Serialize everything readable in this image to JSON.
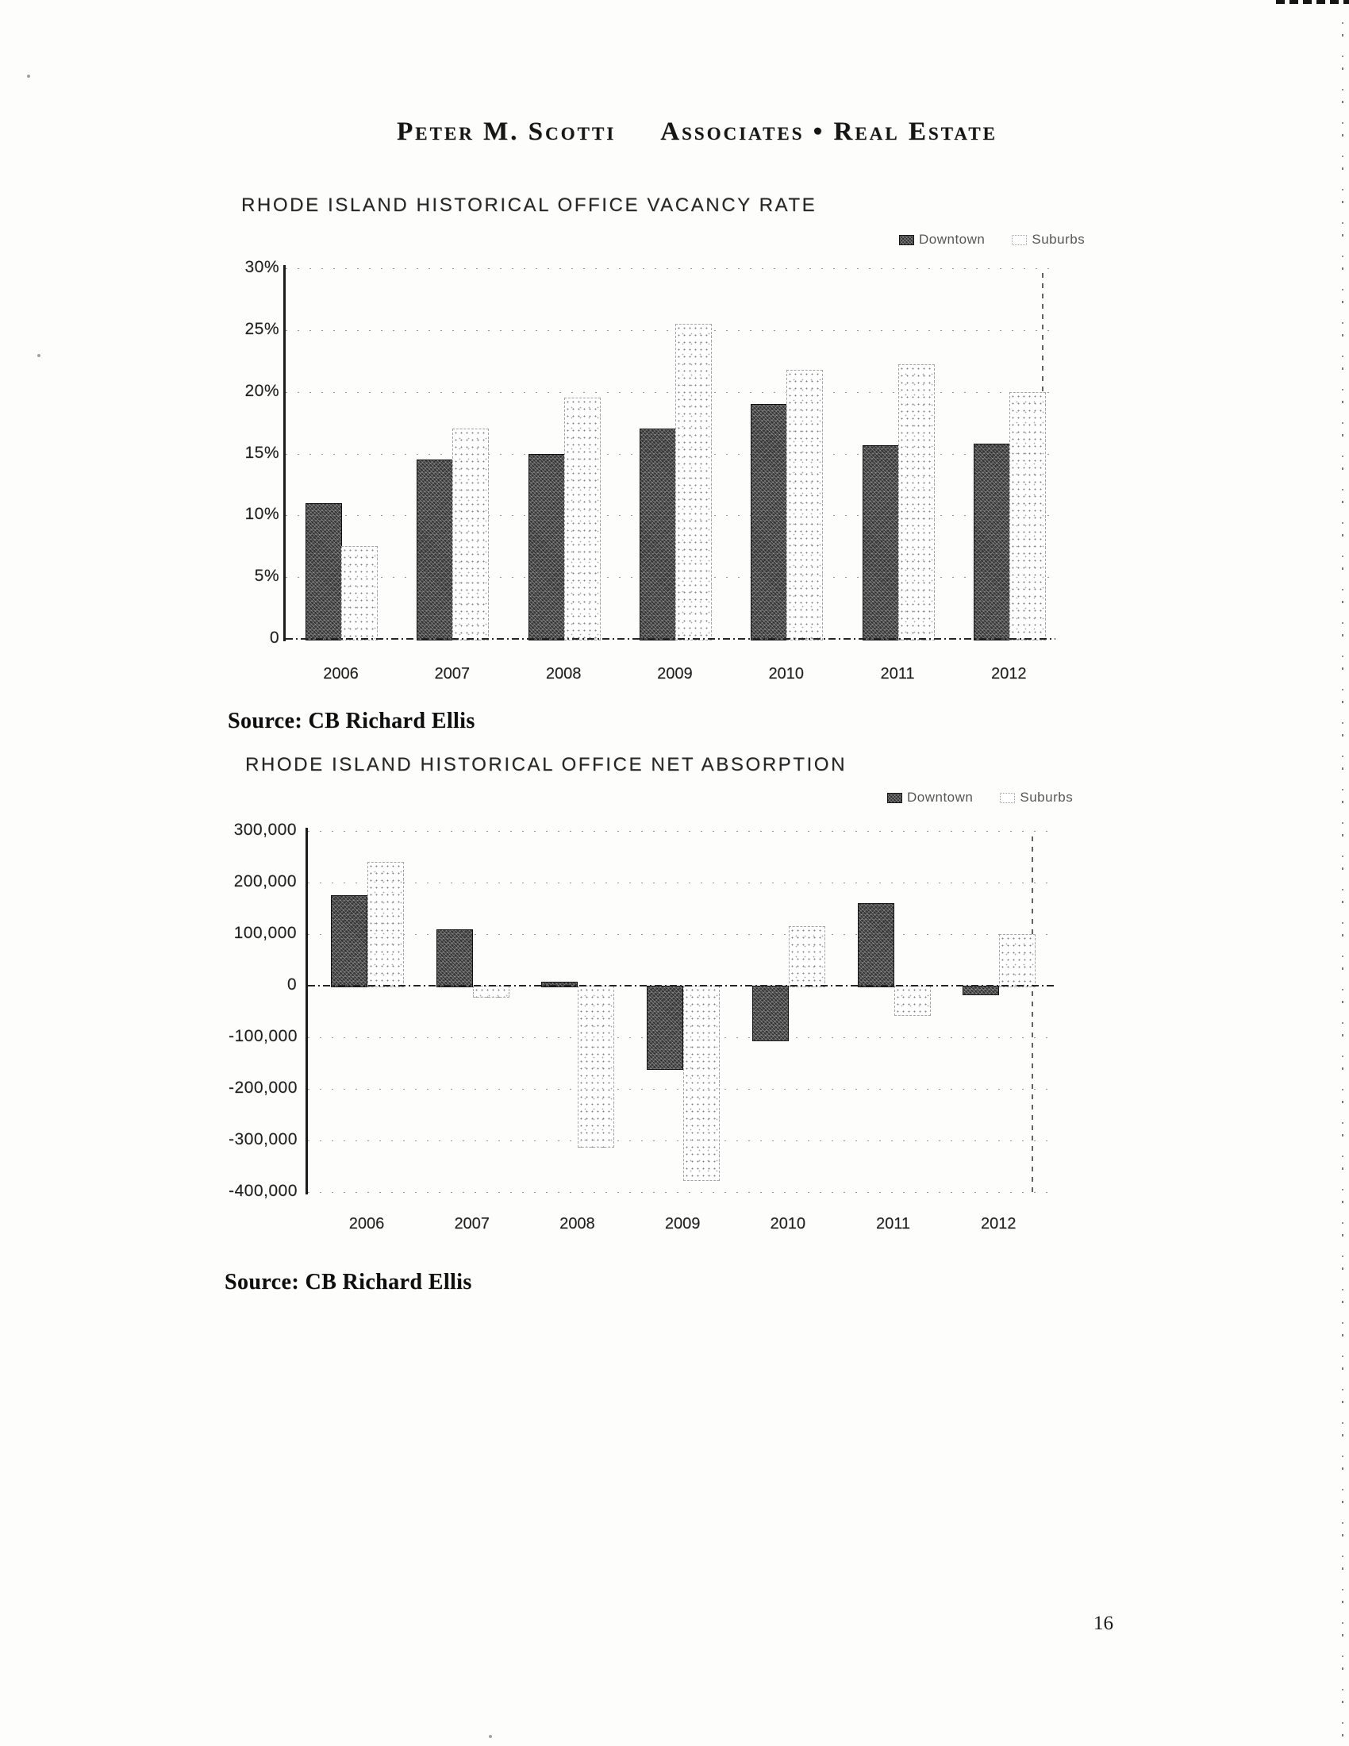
{
  "page": {
    "number": "16"
  },
  "header": {
    "name": "Peter M. Scotti",
    "suffix": "Associates • Real Estate"
  },
  "chart_data": [
    {
      "type": "bar",
      "title": "RHODE ISLAND HISTORICAL OFFICE VACANCY RATE",
      "categories": [
        "2006",
        "2007",
        "2008",
        "2009",
        "2010",
        "2011",
        "2012"
      ],
      "series": [
        {
          "name": "Downtown",
          "values": [
            11,
            14.5,
            15,
            17,
            19,
            15.7,
            15.8
          ]
        },
        {
          "name": "Suburbs",
          "values": [
            7.5,
            17,
            19.5,
            25.5,
            21.8,
            22.2,
            20
          ]
        }
      ],
      "yticks": [
        {
          "label": "30%",
          "value": 30
        },
        {
          "label": "25%",
          "value": 25
        },
        {
          "label": "20%",
          "value": 20
        },
        {
          "label": "15%",
          "value": 15
        },
        {
          "label": "10%",
          "value": 10
        },
        {
          "label": "5%",
          "value": 5
        },
        {
          "label": "0",
          "value": 0
        }
      ],
      "ylim": [
        0,
        30
      ],
      "grid": "dotted horizontal",
      "legend_position": "top-right",
      "source": "Source: CB Richard Ellis"
    },
    {
      "type": "bar",
      "title": "RHODE ISLAND HISTORICAL OFFICE NET ABSORPTION",
      "categories": [
        "2006",
        "2007",
        "2008",
        "2009",
        "2010",
        "2011",
        "2012"
      ],
      "series": [
        {
          "name": "Downtown",
          "values": [
            175000,
            110000,
            8000,
            -160000,
            -105000,
            160000,
            -15000
          ]
        },
        {
          "name": "Suburbs",
          "values": [
            240000,
            -20000,
            -310000,
            -375000,
            115000,
            -55000,
            100000
          ]
        }
      ],
      "yticks": [
        {
          "label": "300,000",
          "value": 300000
        },
        {
          "label": "200,000",
          "value": 200000
        },
        {
          "label": "100,000",
          "value": 100000
        },
        {
          "label": "0",
          "value": 0
        },
        {
          "label": "-100,000",
          "value": -100000
        },
        {
          "label": "-200,000",
          "value": -200000
        },
        {
          "label": "-300,000",
          "value": -300000
        },
        {
          "label": "-400,000",
          "value": -400000
        }
      ],
      "ylim": [
        -400000,
        300000
      ],
      "grid": "dotted horizontal",
      "legend_position": "top-right",
      "source": "Source: CB Richard Ellis"
    }
  ]
}
